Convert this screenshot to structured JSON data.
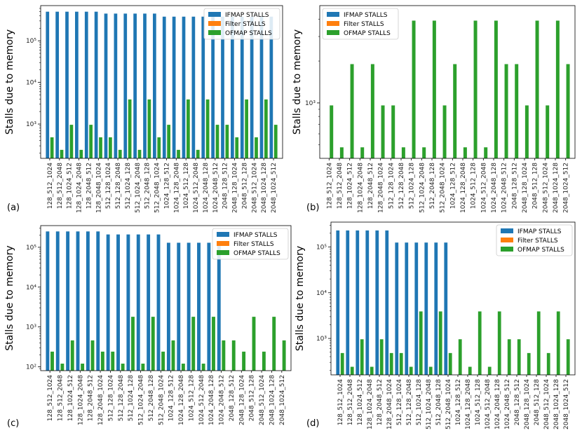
{
  "colors": {
    "ifmap": "#1f77b4",
    "filter": "#ff7f0e",
    "ofmap": "#2ca02c"
  },
  "chart_data": [
    {
      "type": "bar",
      "panel_tag": "(a)",
      "ylabel": "Stalls due to memory",
      "yscale": "log",
      "ylim": [
        150,
        700000
      ],
      "yticks": [
        {
          "v": 1000,
          "l": "10³"
        },
        {
          "v": 10000,
          "l": "10⁴"
        },
        {
          "v": 100000,
          "l": "10⁵"
        }
      ],
      "legend_loc": "top-right",
      "categories": [
        "128_512_1024",
        "128_512_2048",
        "128_1024_512",
        "128_1024_2048",
        "128_2048_512",
        "128_2048_1024",
        "512_128_1024",
        "512_128_2048",
        "512_1024_128",
        "512_1024_2048",
        "512_2048_128",
        "512_2048_1024",
        "1024_128_512",
        "1024_128_2048",
        "1024_512_128",
        "1024_512_2048",
        "1024_2048_128",
        "1024_2048_512",
        "2048_128_512",
        "2048_128_1024",
        "2048_512_128",
        "2048_512_1024",
        "2048_1024_128",
        "2048_1024_512"
      ],
      "series": [
        {
          "name": "IFMAP STALLS",
          "values": [
            500000,
            500000,
            500000,
            500000,
            500000,
            500000,
            450000,
            450000,
            450000,
            450000,
            450000,
            450000,
            380000,
            380000,
            380000,
            380000,
            380000,
            380000,
            380000,
            380000,
            380000,
            380000,
            380000,
            380000
          ]
        },
        {
          "name": "Filter STALLS",
          "values": [
            0,
            0,
            0,
            0,
            0,
            0,
            0,
            0,
            0,
            0,
            0,
            0,
            0,
            0,
            0,
            0,
            0,
            0,
            0,
            0,
            0,
            0,
            0,
            0
          ]
        },
        {
          "name": "OFMAP STALLS",
          "values": [
            480,
            240,
            960,
            240,
            960,
            480,
            480,
            240,
            3900,
            240,
            3900,
            480,
            960,
            240,
            3900,
            240,
            3900,
            960,
            960,
            480,
            3900,
            480,
            3900,
            960
          ]
        }
      ]
    },
    {
      "type": "bar",
      "panel_tag": "(b)",
      "ylabel": "Stalls due to memory",
      "yscale": "log",
      "ylim": [
        400,
        5000
      ],
      "yticks": [
        {
          "v": 1000,
          "l": "10³"
        }
      ],
      "legend_loc": "top-left",
      "categories": [
        "128_512_1024",
        "128_512_2048",
        "128_1024_512",
        "128_1024_2048",
        "128_2048_512",
        "128_2048_1024",
        "512_128_1024",
        "512_128_2048",
        "512_1024_128",
        "512_1024_2048",
        "512_2048_128",
        "512_2048_1024",
        "1024_128_512",
        "1024_128_2048",
        "1024_512_128",
        "1024_512_2048",
        "1024_2048_128",
        "1024_2048_512",
        "2048_128_512",
        "2048_128_1024",
        "2048_512_128",
        "2048_512_1024",
        "2048_1024_128",
        "2048_1024_512"
      ],
      "series": [
        {
          "name": "IFMAP STALLS",
          "values": [
            0,
            0,
            0,
            0,
            0,
            0,
            0,
            0,
            0,
            0,
            0,
            0,
            0,
            0,
            0,
            0,
            0,
            0,
            0,
            0,
            0,
            0,
            0,
            0
          ]
        },
        {
          "name": "Filter STALLS",
          "values": [
            0,
            0,
            0,
            0,
            0,
            0,
            0,
            0,
            0,
            0,
            0,
            0,
            0,
            0,
            0,
            0,
            0,
            0,
            0,
            0,
            0,
            0,
            0,
            0
          ]
        },
        {
          "name": "OFMAP STALLS",
          "values": [
            960,
            480,
            1900,
            480,
            1900,
            960,
            960,
            480,
            3900,
            480,
            3900,
            960,
            1900,
            480,
            3900,
            480,
            3900,
            1900,
            1900,
            960,
            3900,
            960,
            3900,
            1900
          ]
        }
      ]
    },
    {
      "type": "bar",
      "panel_tag": "(c)",
      "ylabel": "Stalls due to memory",
      "yscale": "log",
      "ylim": [
        80,
        350000
      ],
      "yticks": [
        {
          "v": 100,
          "l": "10²"
        },
        {
          "v": 1000,
          "l": "10³"
        },
        {
          "v": 10000,
          "l": "10⁴"
        },
        {
          "v": 100000,
          "l": "10⁵"
        }
      ],
      "legend_loc": "top-right",
      "categories": [
        "128_512_1024",
        "128_512_2048",
        "128_1024_512",
        "128_1024_2048",
        "128_2048_512",
        "128_2048_1024",
        "512_128_1024",
        "512_128_2048",
        "512_1024_128",
        "512_1024_2048",
        "512_2048_128",
        "512_2048_1024",
        "1024_128_512",
        "1024_128_2048",
        "1024_512_128",
        "1024_512_2048",
        "1024_2048_128",
        "1024_2048_512",
        "2048_128_512",
        "2048_128_1024",
        "2048_512_128",
        "2048_512_1024",
        "2048_1024_128",
        "2048_1024_512"
      ],
      "series": [
        {
          "name": "IFMAP STALLS",
          "values": [
            250000,
            250000,
            250000,
            250000,
            250000,
            250000,
            210000,
            210000,
            210000,
            210000,
            210000,
            210000,
            130000,
            130000,
            130000,
            130000,
            130000,
            130000,
            0,
            0,
            0,
            0,
            0,
            0
          ]
        },
        {
          "name": "Filter STALLS",
          "values": [
            0,
            0,
            0,
            0,
            0,
            0,
            0,
            0,
            0,
            0,
            0,
            0,
            0,
            0,
            0,
            0,
            0,
            0,
            0,
            0,
            0,
            0,
            0,
            0
          ]
        },
        {
          "name": "OFMAP STALLS",
          "values": [
            240,
            120,
            460,
            120,
            460,
            240,
            240,
            120,
            1800,
            120,
            1800,
            240,
            460,
            120,
            1800,
            120,
            1800,
            460,
            460,
            240,
            1800,
            240,
            1800,
            460
          ]
        }
      ]
    },
    {
      "type": "bar",
      "panel_tag": "(d)",
      "ylabel": "Stalls due to memory",
      "yscale": "log",
      "ylim": [
        160,
        350000
      ],
      "yticks": [
        {
          "v": 1000,
          "l": "10³"
        },
        {
          "v": 10000,
          "l": "10⁴"
        },
        {
          "v": 100000,
          "l": "10⁵"
        }
      ],
      "legend_loc": "top-right",
      "categories": [
        "128_512_1024",
        "128_512_2048",
        "128_1024_512",
        "128_1024_2048",
        "128_2048_512",
        "128_2048_1024",
        "512_128_1024",
        "512_128_2048",
        "512_1024_128",
        "512_1024_2048",
        "512_2048_128",
        "512_2048_1024",
        "1024_128_512",
        "1024_128_2048",
        "1024_512_128",
        "1024_512_2048",
        "1024_2048_128",
        "1024_2048_512",
        "2048_128_512",
        "2048_128_1024",
        "2048_512_128",
        "2048_512_1024",
        "2048_1024_128",
        "2048_1024_512"
      ],
      "series": [
        {
          "name": "IFMAP STALLS",
          "values": [
            230000,
            230000,
            230000,
            230000,
            230000,
            230000,
            125000,
            125000,
            125000,
            125000,
            125000,
            125000,
            0,
            0,
            0,
            0,
            0,
            0,
            0,
            0,
            0,
            0,
            0,
            0
          ]
        },
        {
          "name": "Filter STALLS",
          "values": [
            0,
            0,
            0,
            0,
            0,
            0,
            0,
            0,
            0,
            0,
            0,
            0,
            0,
            0,
            0,
            0,
            0,
            0,
            0,
            0,
            0,
            0,
            0,
            0
          ]
        },
        {
          "name": "OFMAP STALLS",
          "values": [
            480,
            240,
            960,
            240,
            960,
            480,
            480,
            240,
            3900,
            240,
            3900,
            480,
            960,
            240,
            3900,
            240,
            3900,
            960,
            960,
            480,
            3900,
            480,
            3900,
            960
          ]
        }
      ]
    }
  ]
}
